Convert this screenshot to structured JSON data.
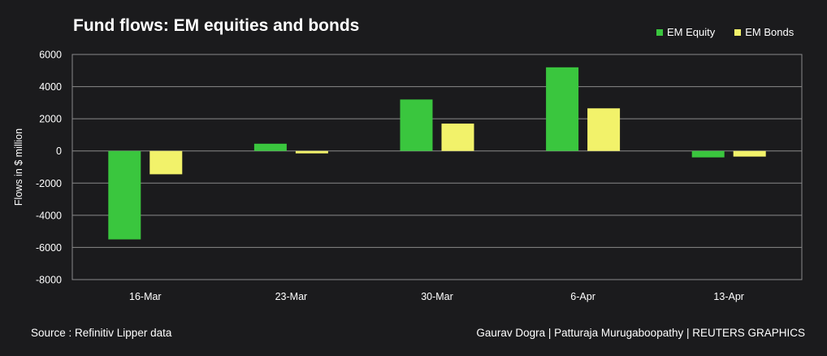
{
  "chart_data": {
    "type": "bar",
    "title": "Fund flows: EM equities and bonds",
    "ylabel": "Flows in $ million",
    "xlabel": "",
    "categories": [
      "16-Mar",
      "23-Mar",
      "30-Mar",
      "6-Apr",
      "13-Apr"
    ],
    "series": [
      {
        "name": "EM Equity",
        "color": "#3ac63e",
        "values": [
          -5500,
          450,
          3200,
          5200,
          -400
        ]
      },
      {
        "name": "EM Bonds",
        "color": "#f2f26a",
        "values": [
          -1450,
          -150,
          1700,
          2650,
          -350
        ]
      }
    ],
    "ylim": [
      -8000,
      6000
    ],
    "yticks": [
      -8000,
      -6000,
      -4000,
      -2000,
      0,
      2000,
      4000,
      6000
    ],
    "ytick_labels": [
      "-8000",
      "-6000",
      "-4000",
      "-2000",
      "0",
      "2000",
      "4000",
      "6000"
    ],
    "grid": true,
    "legend_position": "top-right"
  },
  "footer": {
    "source": "Source : Refinitiv Lipper data",
    "credit": "Gaurav Dogra | Patturaja Murugaboopathy | REUTERS GRAPHICS"
  },
  "colors": {
    "background": "#1b1b1d",
    "gridline": "#8a8a8a",
    "text": "#ffffff"
  }
}
